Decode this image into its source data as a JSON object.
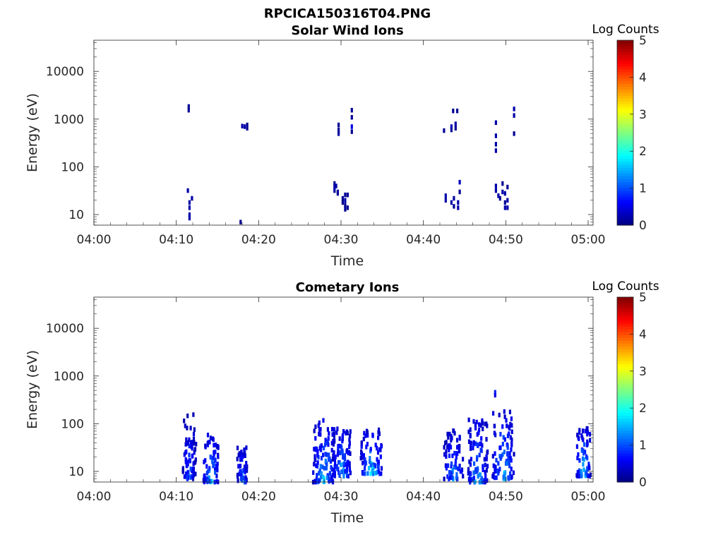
{
  "figure_title": "RPCICA150316T04.PNG",
  "chart_data": [
    {
      "type": "heatmap",
      "title": "Solar Wind Ions",
      "xlabel": "Time",
      "ylabel": "Energy (eV)",
      "x_ticks": [
        "04:00",
        "04:10",
        "04:20",
        "04:30",
        "04:40",
        "04:50",
        "05:00"
      ],
      "y_ticks": [
        "10",
        "100",
        "1000",
        "10000"
      ],
      "xlim_minutes": [
        0,
        60.6
      ],
      "ylim_ev": [
        6,
        45000
      ],
      "y_scale": "log",
      "colorbar": {
        "label": "Log Counts",
        "ticks": [
          "0",
          "1",
          "2",
          "3",
          "4",
          "5"
        ],
        "range": [
          0,
          5
        ],
        "colormap": "jet"
      },
      "cells": [
        [
          11.5,
          1850,
          0.1
        ],
        [
          11.5,
          1550,
          0.1
        ],
        [
          18.0,
          720,
          0.2
        ],
        [
          18.3,
          700,
          0.2
        ],
        [
          18.6,
          760,
          0.1
        ],
        [
          18.6,
          650,
          0.1
        ],
        [
          11.4,
          32,
          0.2
        ],
        [
          11.6,
          18,
          0.2
        ],
        [
          11.6,
          14,
          0.2
        ],
        [
          11.6,
          10,
          0.2
        ],
        [
          11.6,
          8.5,
          0.2
        ],
        [
          11.9,
          22,
          0.2
        ],
        [
          17.8,
          7,
          0.1
        ],
        [
          29.7,
          760,
          0.1
        ],
        [
          29.7,
          600,
          0.1
        ],
        [
          29.7,
          500,
          0.2
        ],
        [
          31.3,
          1550,
          0.1
        ],
        [
          31.3,
          1100,
          0.1
        ],
        [
          31.3,
          700,
          0.5
        ],
        [
          31.3,
          550,
          0.1
        ],
        [
          29.2,
          45,
          0.1
        ],
        [
          29.2,
          38,
          0.2
        ],
        [
          29.2,
          32,
          0.2
        ],
        [
          29.4,
          40,
          0.2
        ],
        [
          29.6,
          28,
          0.1
        ],
        [
          29.6,
          30,
          0.1
        ],
        [
          30.2,
          22,
          0.1
        ],
        [
          30.2,
          18,
          0.1
        ],
        [
          30.5,
          26,
          0.1
        ],
        [
          30.5,
          20,
          0.2
        ],
        [
          30.5,
          16,
          0.1
        ],
        [
          30.8,
          26,
          0.1
        ],
        [
          30.8,
          14,
          0.1
        ],
        [
          30.5,
          13,
          0.1
        ],
        [
          42.5,
          580,
          0.1
        ],
        [
          43.4,
          700,
          0.3
        ],
        [
          43.4,
          600,
          0.1
        ],
        [
          43.6,
          1500,
          0.1
        ],
        [
          44.1,
          1500,
          0.1
        ],
        [
          43.9,
          800,
          0.2
        ],
        [
          43.9,
          650,
          0.1
        ],
        [
          42.7,
          25,
          0.2
        ],
        [
          42.7,
          20,
          0.2
        ],
        [
          43.4,
          18,
          0.2
        ],
        [
          43.7,
          22,
          0.2
        ],
        [
          43.7,
          15,
          0.1
        ],
        [
          44.2,
          18,
          0.2
        ],
        [
          44.2,
          14,
          0.2
        ],
        [
          44.4,
          48,
          0.3
        ],
        [
          44.4,
          30,
          0.1
        ],
        [
          48.8,
          850,
          0.2
        ],
        [
          48.8,
          450,
          0.2
        ],
        [
          48.8,
          300,
          0.2
        ],
        [
          48.8,
          220,
          0.2
        ],
        [
          51.0,
          1650,
          0.2
        ],
        [
          51.0,
          1200,
          0.2
        ],
        [
          51.0,
          500,
          0.1
        ],
        [
          48.8,
          40,
          0.2
        ],
        [
          48.8,
          32,
          0.2
        ],
        [
          49.1,
          25,
          0.2
        ],
        [
          49.3,
          22,
          0.1
        ],
        [
          49.6,
          30,
          0.2
        ],
        [
          49.9,
          28,
          0.2
        ],
        [
          50.2,
          20,
          0.2
        ],
        [
          49.9,
          18,
          0.1
        ],
        [
          50.2,
          14,
          0.2
        ],
        [
          49.9,
          14,
          0.2
        ],
        [
          49.6,
          45,
          0.1
        ],
        [
          50.2,
          38,
          0.1
        ]
      ]
    },
    {
      "type": "heatmap",
      "title": "Cometary Ions",
      "xlabel": "Time",
      "ylabel": "Energy (eV)",
      "x_ticks": [
        "04:00",
        "04:10",
        "04:20",
        "04:30",
        "04:40",
        "04:50",
        "05:00"
      ],
      "y_ticks": [
        "10",
        "100",
        "1000",
        "10000"
      ],
      "xlim_minutes": [
        0,
        60.6
      ],
      "ylim_ev": [
        6,
        45000
      ],
      "y_scale": "log",
      "colorbar": {
        "label": "Log Counts",
        "ticks": [
          "0",
          "1",
          "2",
          "3",
          "4",
          "5"
        ],
        "range": [
          0,
          5
        ],
        "colormap": "jet"
      },
      "clusters": [
        {
          "t0": 10.8,
          "t1": 12.4,
          "e_low": 7,
          "e_high": 160,
          "peak": 1.3,
          "n": 70
        },
        {
          "t0": 13.3,
          "t1": 15.1,
          "e_low": 6,
          "e_high": 70,
          "peak": 2.0,
          "n": 70
        },
        {
          "t0": 17.4,
          "t1": 18.6,
          "e_low": 6,
          "e_high": 35,
          "peak": 1.6,
          "n": 45
        },
        {
          "t0": 26.6,
          "t1": 29.2,
          "e_low": 6,
          "e_high": 125,
          "peak": 2.0,
          "n": 95
        },
        {
          "t0": 29.0,
          "t1": 31.2,
          "e_low": 8,
          "e_high": 80,
          "peak": 1.9,
          "n": 85
        },
        {
          "t0": 32.4,
          "t1": 35.0,
          "e_low": 9,
          "e_high": 80,
          "peak": 2.1,
          "n": 75
        },
        {
          "t0": 42.5,
          "t1": 44.8,
          "e_low": 7,
          "e_high": 75,
          "peak": 1.7,
          "n": 70
        },
        {
          "t0": 45.4,
          "t1": 47.8,
          "e_low": 6,
          "e_high": 130,
          "peak": 1.9,
          "n": 95
        },
        {
          "t0": 48.4,
          "t1": 51.0,
          "e_low": 7,
          "e_high": 190,
          "peak": 2.0,
          "n": 90
        },
        {
          "t0": 58.6,
          "t1": 60.3,
          "e_low": 8,
          "e_high": 85,
          "peak": 2.1,
          "n": 60
        }
      ],
      "cells": [
        [
          48.7,
          460,
          0.8
        ],
        [
          48.7,
          400,
          0.5
        ]
      ]
    }
  ]
}
